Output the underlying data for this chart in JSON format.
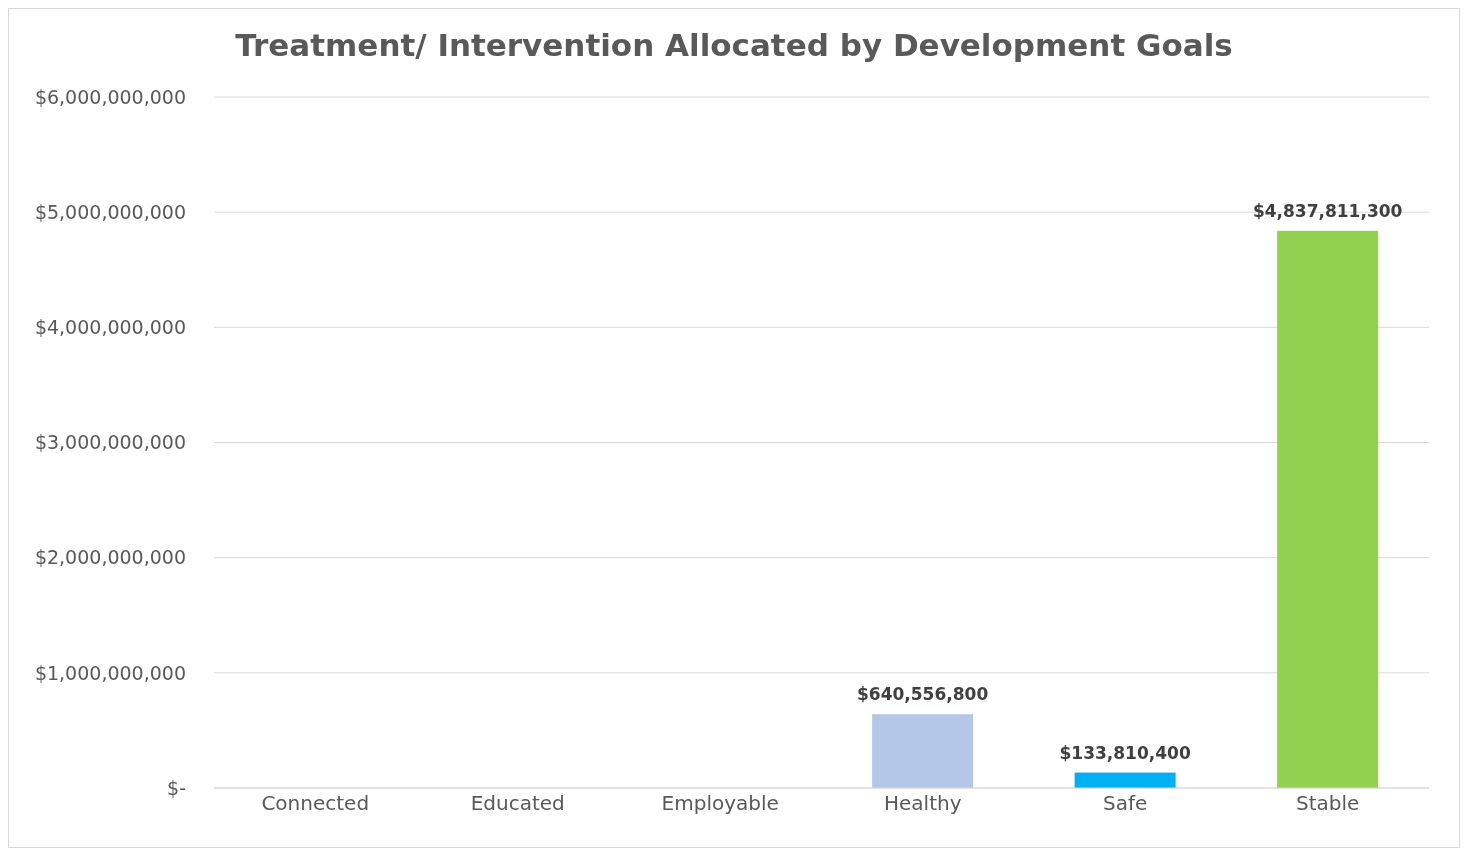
{
  "chart_data": {
    "type": "bar",
    "title": "Treatment/ Intervention Allocated by Development Goals",
    "categories": [
      "Connected",
      "Educated",
      "Employable",
      "Healthy",
      "Safe",
      "Stable"
    ],
    "values": [
      null,
      null,
      null,
      640556800,
      133810400,
      4837811300
    ],
    "colors": [
      "#b4c7e7",
      "#b4c7e7",
      "#b4c7e7",
      "#b4c7e7",
      "#00b0f0",
      "#92d050"
    ],
    "value_labels": [
      null,
      null,
      null,
      "$640,556,800",
      "$133,810,400",
      "$4,837,811,300"
    ],
    "ylim": [
      0,
      6000000000
    ],
    "yticks": [
      {
        "value": 0,
        "label": "$-"
      },
      {
        "value": 1000000000,
        "label": "$1,000,000,000"
      },
      {
        "value": 2000000000,
        "label": "$2,000,000,000"
      },
      {
        "value": 3000000000,
        "label": "$3,000,000,000"
      },
      {
        "value": 4000000000,
        "label": "$4,000,000,000"
      },
      {
        "value": 5000000000,
        "label": "$5,000,000,000"
      },
      {
        "value": 6000000000,
        "label": "$6,000,000,000"
      }
    ],
    "grid": "y",
    "legend": false
  }
}
